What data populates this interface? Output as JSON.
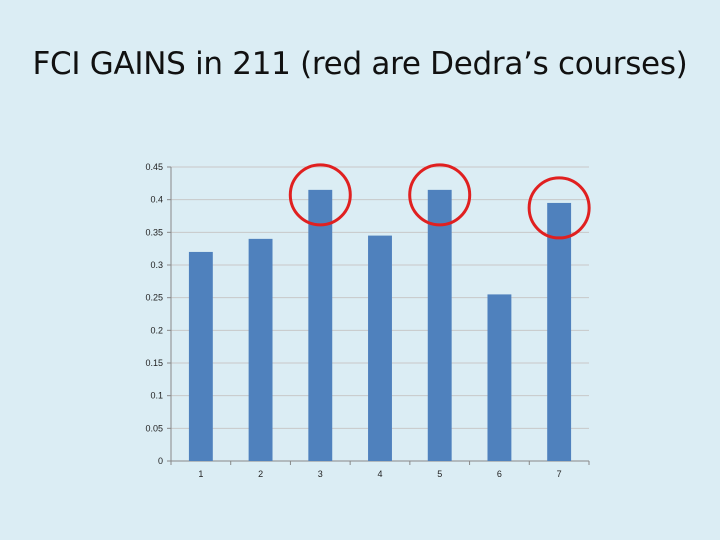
{
  "slide": {
    "title": "FCI GAINS in 211 (red are Dedra’s courses)"
  },
  "chart_data": {
    "type": "bar",
    "title": "",
    "xlabel": "",
    "ylabel": "",
    "categories": [
      "1",
      "2",
      "3",
      "4",
      "5",
      "6",
      "7"
    ],
    "values": [
      0.32,
      0.34,
      0.415,
      0.345,
      0.415,
      0.255,
      0.395
    ],
    "highlighted_categories": [
      "3",
      "5",
      "7"
    ],
    "ylim": [
      0,
      0.45
    ],
    "yticks": [
      0,
      0.05,
      0.1,
      0.15,
      0.2,
      0.25,
      0.3,
      0.35,
      0.4,
      0.45
    ],
    "ytick_labels": [
      "0",
      "0.05",
      "0.1",
      "0.15",
      "0.2",
      "0.25",
      "0.3",
      "0.35",
      "0.4",
      "0.45"
    ],
    "grid": true,
    "legend": "none",
    "colors": {
      "bar": "#4f81bd",
      "highlight_circle": "#e02020",
      "grid": "#c8c8c8",
      "axis": "#888888"
    }
  }
}
